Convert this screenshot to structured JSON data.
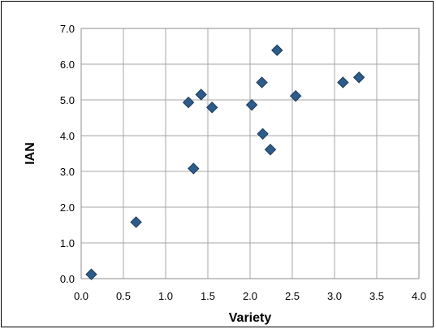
{
  "chart_data": {
    "type": "scatter",
    "title": "",
    "xlabel": "Variety",
    "ylabel": "IAN",
    "xlim": [
      0,
      4
    ],
    "ylim": [
      0,
      7
    ],
    "x_ticks": [
      "0.0",
      "0.5",
      "1.0",
      "1.5",
      "2.0",
      "2.5",
      "3.0",
      "3.5",
      "4.0"
    ],
    "y_ticks": [
      "0.0",
      "1.0",
      "2.0",
      "3.0",
      "4.0",
      "5.0",
      "6.0",
      "7.0"
    ],
    "grid": true,
    "legend": "none",
    "marker": "diamond",
    "marker_color": "#2E5C8A",
    "marker_edge_color": "#1B3A5C",
    "points": [
      {
        "x": 0.12,
        "y": 0.12
      },
      {
        "x": 0.65,
        "y": 1.58
      },
      {
        "x": 1.27,
        "y": 4.93
      },
      {
        "x": 1.33,
        "y": 3.08
      },
      {
        "x": 1.42,
        "y": 5.15
      },
      {
        "x": 1.55,
        "y": 4.79
      },
      {
        "x": 2.02,
        "y": 4.86
      },
      {
        "x": 2.14,
        "y": 5.49
      },
      {
        "x": 2.15,
        "y": 4.05
      },
      {
        "x": 2.24,
        "y": 3.61
      },
      {
        "x": 2.32,
        "y": 6.39
      },
      {
        "x": 2.54,
        "y": 5.11
      },
      {
        "x": 3.1,
        "y": 5.49
      },
      {
        "x": 3.29,
        "y": 5.63
      }
    ]
  }
}
